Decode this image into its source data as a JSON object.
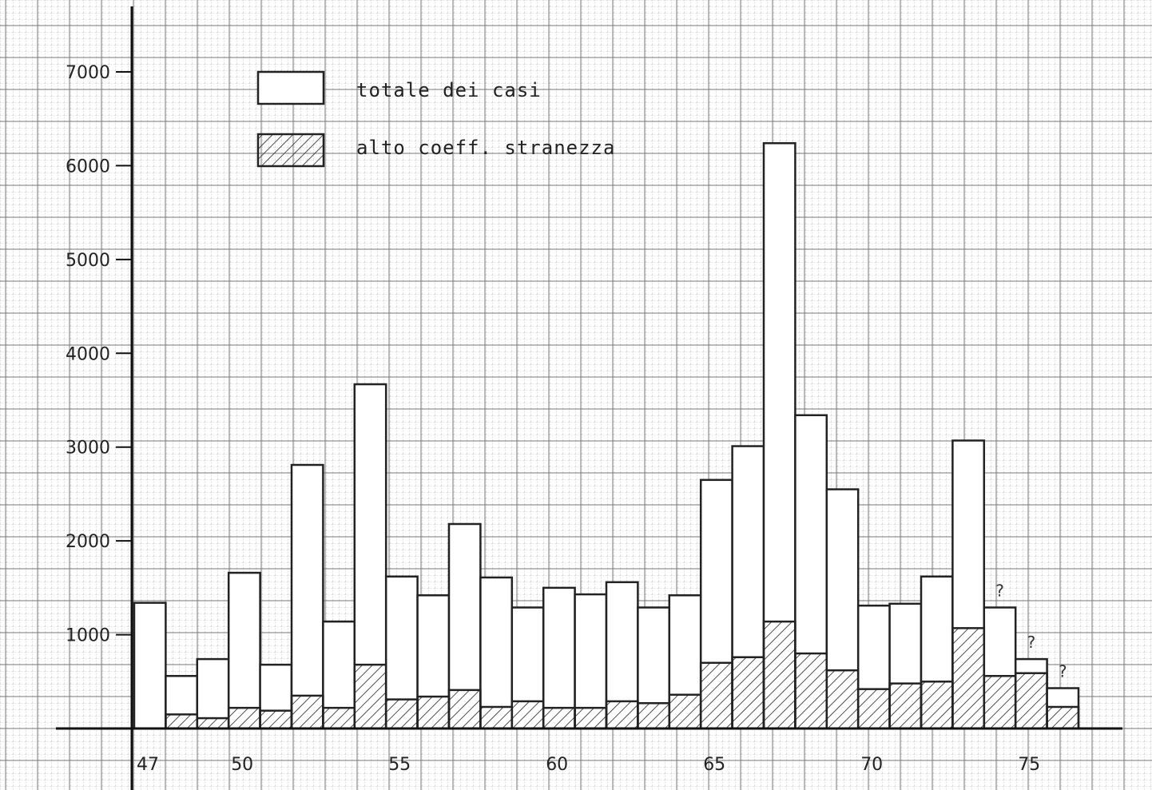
{
  "chart_data": {
    "type": "bar",
    "x": [
      47,
      48,
      49,
      50,
      51,
      52,
      53,
      54,
      55,
      56,
      57,
      58,
      59,
      60,
      61,
      62,
      63,
      64,
      65,
      66,
      67,
      68,
      69,
      70,
      71,
      72,
      73,
      74,
      75,
      76
    ],
    "x_tick_labels": [
      "47",
      "50",
      "55",
      "60",
      "65",
      "70",
      "75"
    ],
    "x_tick_values": [
      47,
      50,
      55,
      60,
      65,
      70,
      75
    ],
    "y_tick_labels": [
      "1000",
      "2000",
      "3000",
      "4000",
      "5000",
      "6000",
      "7000"
    ],
    "y_tick_values": [
      1000,
      2000,
      3000,
      4000,
      5000,
      6000,
      7000
    ],
    "ylim": [
      0,
      7000
    ],
    "series": [
      {
        "name": "totale dei casi",
        "style": "outline",
        "values": [
          1340,
          560,
          740,
          1660,
          680,
          2810,
          1140,
          3670,
          1620,
          1420,
          2180,
          1610,
          1290,
          1500,
          1430,
          1560,
          1290,
          1420,
          2650,
          3010,
          6240,
          3340,
          2550,
          1310,
          1330,
          1620,
          3070,
          1290,
          740,
          430
        ]
      },
      {
        "name": "alto coeff. stranezza",
        "style": "hatched",
        "values": [
          0,
          150,
          110,
          220,
          190,
          350,
          220,
          680,
          310,
          340,
          410,
          230,
          290,
          220,
          220,
          290,
          270,
          360,
          700,
          760,
          1140,
          800,
          620,
          420,
          480,
          500,
          1070,
          560,
          590,
          230
        ]
      }
    ],
    "annotations": [
      {
        "text": "?",
        "x": 74
      },
      {
        "text": "?",
        "x": 75
      },
      {
        "text": "?",
        "x": 76
      }
    ],
    "grid": true,
    "legend_position": "top-left"
  }
}
